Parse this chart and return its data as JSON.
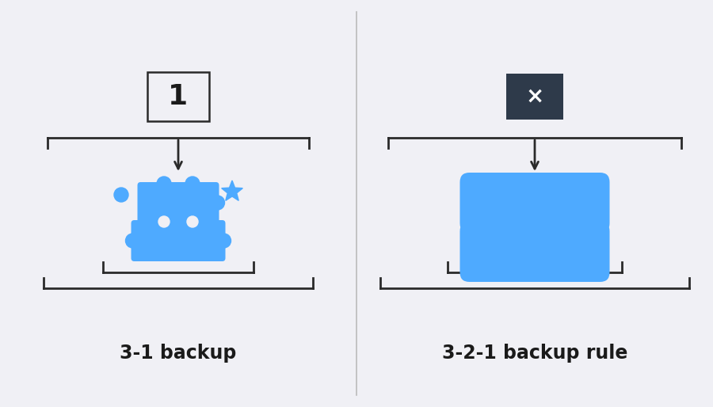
{
  "bg_color": "#f0f0f5",
  "divider_color": "#bbbbbb",
  "blue_color": "#4eaaff",
  "dark_box_color": "#2e3a4a",
  "line_color": "#2a2a2a",
  "text_color": "#1a1a1a",
  "label_left": "3-1 backup",
  "label_right": "3-2-1 backup rule",
  "label_fontsize": 17,
  "box1_text": "1",
  "box2_text": "×",
  "box1_text_color": "#1a1a1a",
  "box2_text_color": "#ffffff",
  "lw": 2.0
}
